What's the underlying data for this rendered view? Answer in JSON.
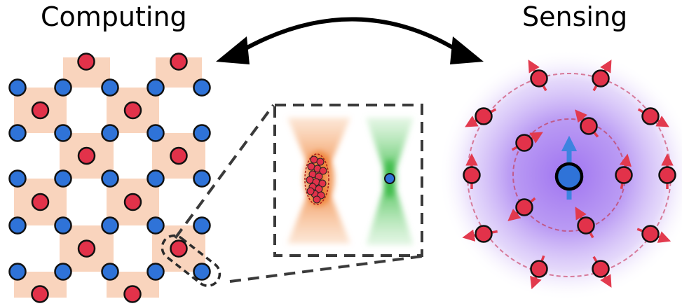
{
  "titles": {
    "left": "Computing",
    "right": "Sensing"
  },
  "colors": {
    "red_atom": "#e2324a",
    "blue_atom": "#2f73d8",
    "patch": "#f9d4bd",
    "purple_glow": "#a47bf0",
    "orange_beam": "#f08a3c",
    "green_beam": "#3fbf4a",
    "arrow_red": "#e23a4e",
    "dash": "#3a3a3a"
  },
  "icons": {
    "double_arrow": "curved-double-arrow-icon",
    "spin_arrow": "spin-arrow-icon"
  }
}
